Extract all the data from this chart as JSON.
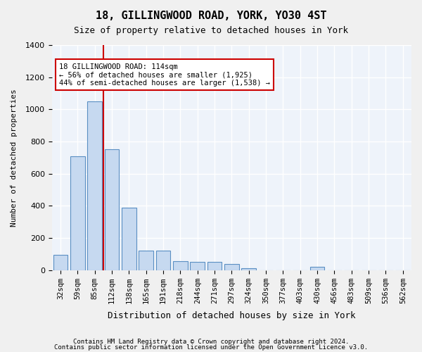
{
  "title": "18, GILLINGWOOD ROAD, YORK, YO30 4ST",
  "subtitle": "Size of property relative to detached houses in York",
  "xlabel": "Distribution of detached houses by size in York",
  "ylabel": "Number of detached properties",
  "bar_color": "#c6d9f0",
  "bar_edge_color": "#5a8fc3",
  "background_color": "#eef3fa",
  "grid_color": "#ffffff",
  "categories": [
    "32sqm",
    "59sqm",
    "85sqm",
    "112sqm",
    "138sqm",
    "165sqm",
    "191sqm",
    "218sqm",
    "244sqm",
    "271sqm",
    "297sqm",
    "324sqm",
    "350sqm",
    "377sqm",
    "403sqm",
    "430sqm",
    "456sqm",
    "483sqm",
    "509sqm",
    "536sqm",
    "562sqm"
  ],
  "values": [
    95,
    710,
    1050,
    750,
    390,
    120,
    120,
    55,
    50,
    50,
    40,
    10,
    0,
    0,
    0,
    20,
    0,
    0,
    0,
    0,
    0
  ],
  "ylim": [
    0,
    1400
  ],
  "yticks": [
    0,
    200,
    400,
    600,
    800,
    1000,
    1200,
    1400
  ],
  "property_line_x": 2.5,
  "annotation_text": "18 GILLINGWOOD ROAD: 114sqm\n← 56% of detached houses are smaller (1,925)\n44% of semi-detached houses are larger (1,538) →",
  "annotation_box_color": "#cc0000",
  "footer_line1": "Contains HM Land Registry data © Crown copyright and database right 2024.",
  "footer_line2": "Contains public sector information licensed under the Open Government Licence v3.0."
}
